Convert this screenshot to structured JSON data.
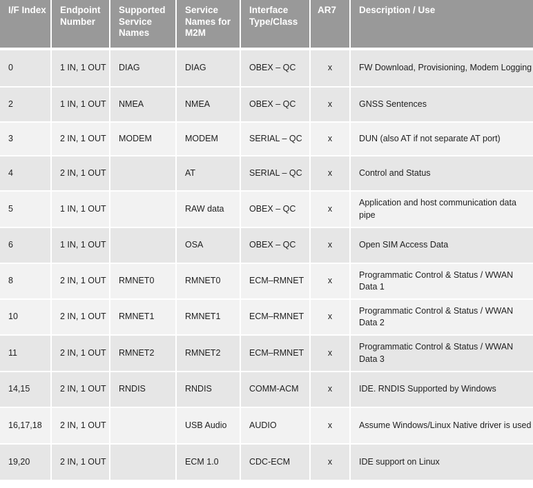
{
  "table": {
    "headers": [
      "I/F Index",
      "Endpoint Number",
      "Supported Service Names",
      "Service Names for M2M",
      "Interface Type/Class",
      "AR7",
      "Description / Use"
    ],
    "colors": {
      "header_bg": "#999999",
      "header_text": "#ffffff",
      "row_dark": "#e6e6e6",
      "row_light": "#f2f2f2"
    },
    "rows": [
      {
        "shade": "dark",
        "cells": [
          "0",
          "1 IN, 1 OUT",
          "DIAG",
          "DIAG",
          "OBEX – QC",
          "x",
          "FW Download, Provisioning,  Modem Logging"
        ]
      },
      {
        "shade": "dark",
        "cells": [
          "2",
          "1 IN, 1 OUT",
          "NMEA",
          "NMEA",
          "OBEX – QC",
          "x",
          "GNSS Sentences"
        ]
      },
      {
        "shade": "light",
        "cells": [
          "3",
          "2 IN, 1 OUT",
          "MODEM",
          "MODEM",
          "SERIAL – QC",
          "x",
          "DUN (also AT if not separate AT port)"
        ]
      },
      {
        "shade": "dark",
        "cells": [
          "4",
          "2 IN, 1 OUT",
          "",
          "AT",
          "SERIAL – QC",
          "x",
          "Control and Status"
        ]
      },
      {
        "shade": "light",
        "cells": [
          "5",
          "1 IN, 1 OUT",
          "",
          "RAW data",
          "OBEX – QC",
          "x",
          "Application  and host communication data pipe"
        ]
      },
      {
        "shade": "dark",
        "cells": [
          "6",
          "1 IN, 1 OUT",
          "",
          "OSA",
          "OBEX – QC",
          "x",
          "Open SIM Access Data"
        ]
      },
      {
        "shade": "light",
        "cells": [
          "8",
          "2 IN, 1 OUT",
          "RMNET0",
          "RMNET0",
          "ECM–RMNET",
          "x",
          "Programmatic Control & Status / WWAN Data  1"
        ]
      },
      {
        "shade": "light",
        "cells": [
          "10",
          "2 IN, 1 OUT",
          "RMNET1",
          "RMNET1",
          "ECM–RMNET",
          "x",
          "Programmatic Control & Status / WWAN Data  2"
        ]
      },
      {
        "shade": "dark",
        "cells": [
          "11",
          "2 IN, 1 OUT",
          "RMNET2",
          "RMNET2",
          "ECM–RMNET",
          "x",
          "Programmatic Control & Status / WWAN Data  3"
        ]
      },
      {
        "shade": "dark",
        "cells": [
          "14,15",
          "2 IN, 1 OUT",
          "RNDIS",
          "RNDIS",
          "COMM-ACM",
          "x",
          "IDE. RNDIS Supported  by Windows"
        ]
      },
      {
        "shade": "light",
        "cells": [
          "16,17,18",
          "2 IN, 1 OUT",
          "",
          "USB Audio",
          "AUDIO",
          "x",
          "Assume Windows/Linux  Native driver is used"
        ]
      },
      {
        "shade": "dark",
        "cells": [
          "19,20",
          "2 IN, 1 OUT",
          "",
          "ECM 1.0",
          "CDC-ECM",
          "x",
          "IDE support  on Linux"
        ]
      }
    ]
  }
}
